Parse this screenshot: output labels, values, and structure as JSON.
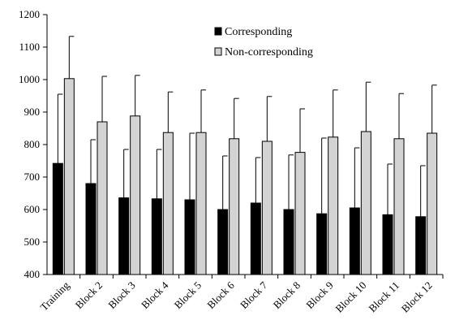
{
  "chart_data": {
    "type": "bar",
    "title": "",
    "xlabel": "",
    "ylabel": "",
    "ylim": [
      400,
      1200
    ],
    "y_ticks": [
      "400",
      "500",
      "600",
      "700",
      "800",
      "900",
      "1000",
      "1100",
      "1200"
    ],
    "y_tick_values": [
      400,
      500,
      600,
      700,
      800,
      900,
      1000,
      1100,
      1200
    ],
    "grid": false,
    "legend_position": "top-center",
    "categories": [
      "Training",
      "Block 2",
      "Block 3",
      "Block 4",
      "Block 5",
      "Block 6",
      "Block 7",
      "Block 8",
      "Block 9",
      "Block 10",
      "Block 11",
      "Block 12"
    ],
    "series": [
      {
        "name": "Corresponding",
        "color": "#000000",
        "values": [
          742,
          680,
          636,
          633,
          630,
          600,
          620,
          600,
          587,
          605,
          584,
          578
        ],
        "error_upper": [
          955,
          815,
          785,
          785,
          835,
          765,
          760,
          768,
          820,
          790,
          740,
          735
        ]
      },
      {
        "name": "Non-corresponding",
        "color": "#d3d3d3",
        "values": [
          1003,
          870,
          888,
          837,
          837,
          818,
          810,
          776,
          823,
          840,
          818,
          835
        ],
        "error_upper": [
          1133,
          1010,
          1013,
          962,
          968,
          942,
          948,
          910,
          968,
          992,
          957,
          983
        ]
      }
    ]
  }
}
